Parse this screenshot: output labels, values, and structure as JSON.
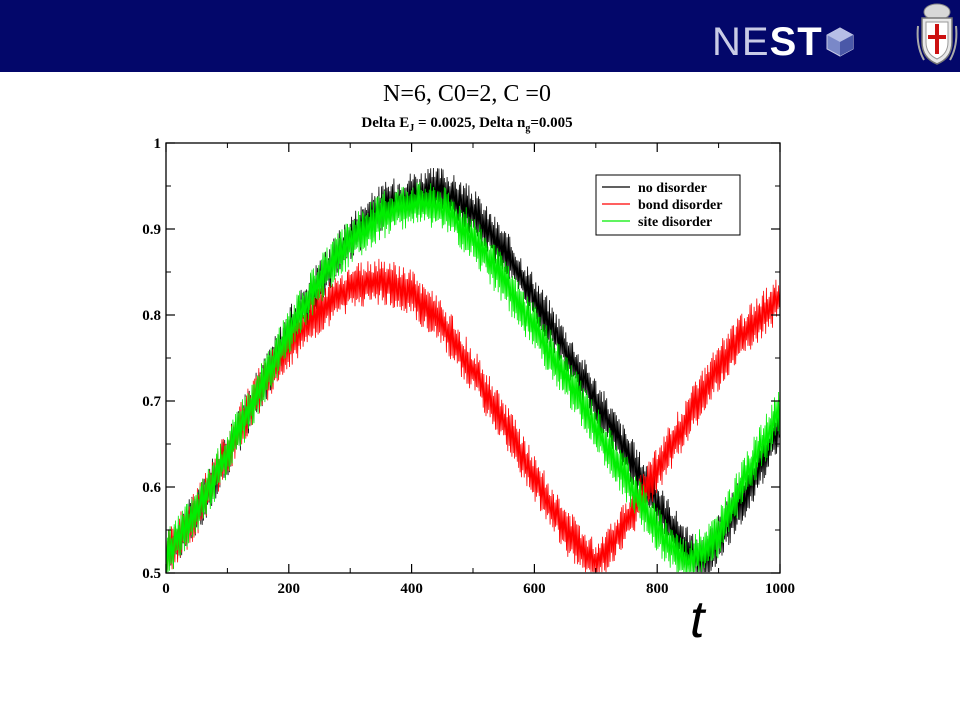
{
  "header": {
    "logo_text_thin": "NE",
    "logo_text_bold": "ST",
    "banner_color": "#03076a"
  },
  "chart_data": {
    "type": "line",
    "title": "N=6, C0=2, C   =0",
    "subtitle": {
      "part1": "Delta E",
      "sub1": "J",
      "part2": " = 0.0025,  Delta n",
      "sub2": "g",
      "part3": "=0.005"
    },
    "xlabel": "t",
    "ylabel": "",
    "xlim": [
      0,
      1000
    ],
    "ylim": [
      0.5,
      1
    ],
    "xticks": [
      0,
      200,
      400,
      600,
      800,
      1000
    ],
    "yticks": [
      0.5,
      0.6,
      0.7,
      0.8,
      0.9,
      1
    ],
    "ytick_labels": [
      "0.5",
      "0.6",
      "0.7",
      "0.8",
      "0.9",
      "1"
    ],
    "grid": false,
    "legend_position": "top-right",
    "series": [
      {
        "name": "no disorder",
        "color": "#000000",
        "x": [
          0,
          50,
          100,
          150,
          200,
          250,
          300,
          350,
          400,
          450,
          500,
          550,
          600,
          650,
          700,
          750,
          800,
          850,
          870,
          900,
          950,
          1000
        ],
        "y": [
          0.52,
          0.57,
          0.64,
          0.71,
          0.78,
          0.84,
          0.89,
          0.925,
          0.94,
          0.945,
          0.92,
          0.875,
          0.82,
          0.76,
          0.7,
          0.64,
          0.58,
          0.525,
          0.51,
          0.54,
          0.6,
          0.67
        ]
      },
      {
        "name": "bond disorder",
        "color": "#ff0000",
        "x": [
          0,
          50,
          100,
          150,
          200,
          250,
          300,
          350,
          400,
          450,
          500,
          550,
          600,
          650,
          700,
          750,
          800,
          850,
          900,
          950,
          1000
        ],
        "y": [
          0.52,
          0.57,
          0.64,
          0.71,
          0.765,
          0.805,
          0.83,
          0.84,
          0.825,
          0.79,
          0.735,
          0.675,
          0.61,
          0.55,
          0.51,
          0.56,
          0.62,
          0.68,
          0.74,
          0.785,
          0.82
        ]
      },
      {
        "name": "site disorder",
        "color": "#00ee00",
        "x": [
          0,
          50,
          100,
          150,
          200,
          250,
          300,
          350,
          400,
          450,
          500,
          550,
          600,
          650,
          700,
          750,
          800,
          850,
          900,
          950,
          1000
        ],
        "y": [
          0.52,
          0.57,
          0.64,
          0.71,
          0.78,
          0.84,
          0.885,
          0.915,
          0.93,
          0.925,
          0.89,
          0.84,
          0.785,
          0.73,
          0.67,
          0.61,
          0.55,
          0.51,
          0.545,
          0.62,
          0.69
        ]
      }
    ]
  }
}
